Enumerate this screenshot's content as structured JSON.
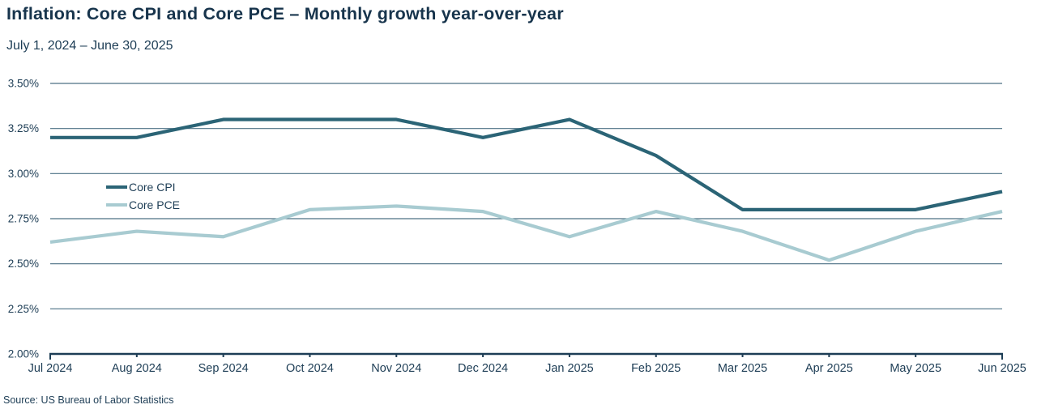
{
  "header": {
    "title": "Inflation: Core CPI and Core PCE – Monthly growth year-over-year",
    "subtitle": "July 1, 2024 – June 30, 2025"
  },
  "source": "Source: US Bureau of Labor Statistics",
  "colors": {
    "text": "#1d3d55",
    "grid": "#4c7085",
    "axis": "#1d3d55",
    "core_cpi_line": "#2b6476",
    "core_pce_line": "#a8cbd1"
  },
  "chart_data": {
    "type": "line",
    "title": "Inflation: Core CPI and Core PCE – Monthly growth year-over-year",
    "subtitle": "July 1, 2024 – June 30, 2025",
    "source": "Source: US Bureau of Labor Statistics",
    "categories": [
      "Jul 2024",
      "Aug 2024",
      "Sep 2024",
      "Oct 2024",
      "Nov 2024",
      "Dec 2024",
      "Jan 2025",
      "Feb 2025",
      "Mar 2025",
      "Apr 2025",
      "May 2025",
      "Jun 2025"
    ],
    "series": [
      {
        "name": "Core CPI",
        "color": "#2b6476",
        "values": [
          3.2,
          3.2,
          3.3,
          3.3,
          3.3,
          3.2,
          3.3,
          3.1,
          2.8,
          2.8,
          2.8,
          2.9
        ]
      },
      {
        "name": "Core PCE",
        "color": "#a8cbd1",
        "values": [
          2.62,
          2.68,
          2.65,
          2.8,
          2.82,
          2.79,
          2.65,
          2.79,
          2.68,
          2.52,
          2.68,
          2.79
        ]
      }
    ],
    "ylabel": "",
    "xlabel": "",
    "ylim": [
      2.0,
      3.5
    ],
    "ytick_step": 0.25,
    "ytick_labels": [
      "2.00%",
      "2.25%",
      "2.50%",
      "2.75%",
      "3.00%",
      "3.25%",
      "3.50%"
    ],
    "grid": "horizontal",
    "legend_position": "inside-left"
  }
}
